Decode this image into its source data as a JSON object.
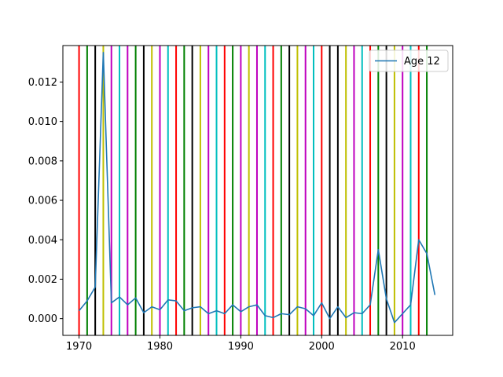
{
  "chart_data": {
    "type": "line",
    "title": "",
    "xlabel": "",
    "ylabel": "",
    "xlim": [
      1968.0,
      2016.2
    ],
    "ylim": [
      -0.00085,
      0.01385
    ],
    "x_ticks": [
      1970,
      1980,
      1990,
      2000,
      2010
    ],
    "x_tick_labels": [
      "1970",
      "1980",
      "1990",
      "2000",
      "2010"
    ],
    "y_ticks": [
      0.0,
      0.002,
      0.004,
      0.006,
      0.008,
      0.01,
      0.012
    ],
    "y_tick_labels": [
      "0.000",
      "0.002",
      "0.004",
      "0.006",
      "0.008",
      "0.010",
      "0.012"
    ],
    "grid": false,
    "legend": {
      "placement": "top-right",
      "entries": [
        "Age 12"
      ]
    },
    "series": [
      {
        "name": "Age 12",
        "color": "#1f77b4",
        "x": [
          1970,
          1971,
          1972,
          1973,
          1974,
          1975,
          1976,
          1977,
          1978,
          1979,
          1980,
          1981,
          1982,
          1983,
          1984,
          1985,
          1986,
          1987,
          1988,
          1989,
          1990,
          1991,
          1992,
          1993,
          1994,
          1995,
          1996,
          1997,
          1998,
          1999,
          2000,
          2001,
          2002,
          2003,
          2004,
          2005,
          2006,
          2007,
          2008,
          2009,
          2010,
          2011,
          2012,
          2013,
          2014
        ],
        "y": [
          0.0004,
          0.0009,
          0.0016,
          0.0135,
          0.0008,
          0.0011,
          0.0007,
          0.00105,
          0.0003,
          0.0006,
          0.00045,
          0.00095,
          0.0009,
          0.0004,
          0.00055,
          0.0006,
          0.00025,
          0.0004,
          0.00025,
          0.0007,
          0.00035,
          0.0006,
          0.0007,
          0.00015,
          5e-05,
          0.00025,
          0.0002,
          0.0006,
          0.0005,
          0.00015,
          0.0008,
          0.0,
          0.0006,
          5e-05,
          0.0003,
          0.00025,
          0.0007,
          0.0035,
          0.001,
          -0.0002,
          0.00025,
          0.0007,
          0.004,
          0.0033,
          0.0012
        ]
      }
    ],
    "vertical_lines": {
      "x": [
        1970,
        1971,
        1972,
        1973,
        1974,
        1975,
        1976,
        1977,
        1978,
        1979,
        1980,
        1981,
        1982,
        1983,
        1984,
        1985,
        1986,
        1987,
        1988,
        1989,
        1990,
        1991,
        1992,
        1993,
        1994,
        1995,
        1996,
        1997,
        1998,
        1999,
        2000,
        2001,
        2002,
        2003,
        2004,
        2005,
        2006,
        2007,
        2008,
        2009,
        2010,
        2011,
        2012,
        2013
      ],
      "color_cycle": [
        "#ff0000",
        "#008000",
        "#000000",
        "#bfbf00",
        "#bf00bf",
        "#00bfbf",
        "#ff0000",
        "#008000",
        "#000000",
        "#bfbf00",
        "#bf00bf",
        "#00bfbf"
      ],
      "colors": [
        "#ff0000",
        "#008000",
        "#000000",
        "#bfbf00",
        "#bf00bf",
        "#00bfbf",
        "#bf00bf",
        "#008000",
        "#000000",
        "#bfbf00",
        "#bf00bf",
        "#00bfbf",
        "#ff0000",
        "#008000",
        "#000000",
        "#bfbf00",
        "#bf00bf",
        "#00bfbf",
        "#ff0000",
        "#008000",
        "#bf00bf",
        "#bfbf00",
        "#bf00bf",
        "#00bfbf",
        "#ff0000",
        "#008000",
        "#000000",
        "#bfbf00",
        "#bf00bf",
        "#00bfbf",
        "#ff0000",
        "#000000",
        "#000000",
        "#bfbf00",
        "#bf00bf",
        "#00bfbf",
        "#ff0000",
        "#008000",
        "#000000",
        "#bfbf00",
        "#bf00bf",
        "#00bfbf",
        "#ff0000",
        "#008000"
      ]
    }
  }
}
